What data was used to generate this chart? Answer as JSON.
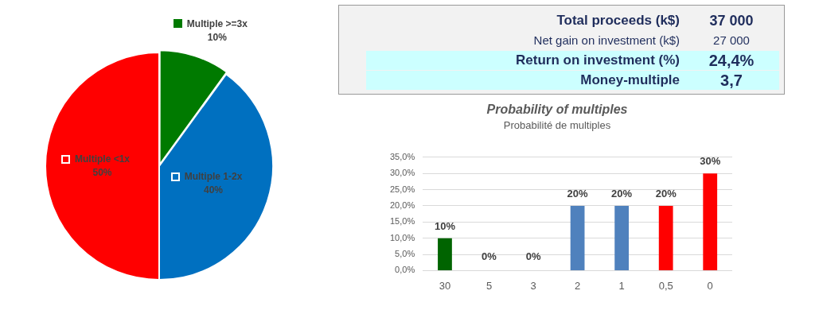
{
  "chart_data": [
    {
      "type": "pie",
      "categories": [
        "Multiple >=3x",
        "Multiple 1-2x",
        "Multiple <1x"
      ],
      "values": [
        10,
        40,
        50
      ],
      "colors": [
        "#007a00",
        "#0070c0",
        "#ff0000"
      ],
      "value_labels": [
        "10%",
        "40%",
        "50%"
      ],
      "legend": "top left"
    },
    {
      "type": "other",
      "annotations": [
        "Total proceeds (k$)",
        "37 000",
        "Net gain on investment (k$)",
        "27 000",
        "Return on investment (%)",
        "24,4%",
        "Money-multiple",
        "3,7"
      ]
    },
    {
      "type": "bar",
      "title": "Probability of multiples",
      "subtitle": "Probabilité de multiples",
      "categories": [
        "30",
        "5",
        "3",
        "2",
        "1",
        "0,5",
        "0"
      ],
      "values": [
        10,
        0,
        0,
        20,
        20,
        20,
        30
      ],
      "colors": [
        "#006400",
        "#4f81bd",
        "#4f81bd",
        "#4f81bd",
        "#4f81bd",
        "#ff0000",
        "#ff0000"
      ],
      "value_labels": [
        "10%",
        "0%",
        "0%",
        "20%",
        "20%",
        "20%",
        "30%"
      ],
      "ylim": [
        0,
        35
      ],
      "yticks": [
        {
          "value": 0,
          "label": "0,0%"
        },
        {
          "value": 5,
          "label": "5,0%"
        },
        {
          "value": 10,
          "label": "10,0%"
        },
        {
          "value": 15,
          "label": "15,0%"
        },
        {
          "value": 20,
          "label": "20,0%"
        },
        {
          "value": 25,
          "label": "25,0%"
        },
        {
          "value": 30,
          "label": "30,0%"
        },
        {
          "value": 35,
          "label": "35,0%"
        }
      ],
      "grid": "y"
    }
  ]
}
